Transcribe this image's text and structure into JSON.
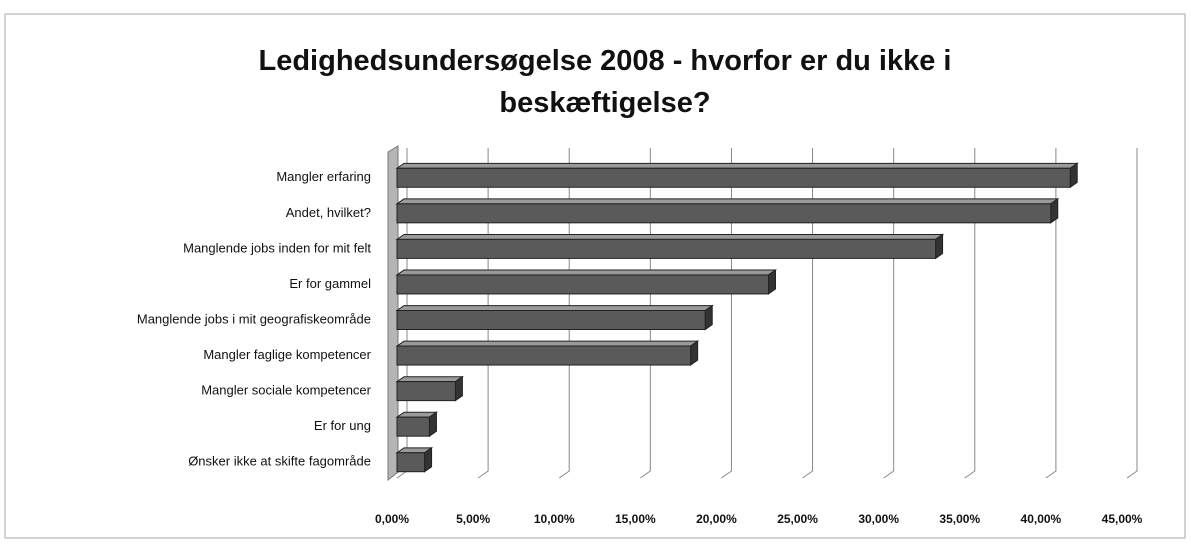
{
  "chart_data": {
    "type": "bar",
    "orientation": "horizontal",
    "title": "Ledighedsundersøgelse 2008 - hvorfor er du ikke i beskæftigelse?",
    "categories": [
      "Mangler erfaring",
      "Andet, hvilket?",
      "Manglende jobs inden for mit felt",
      "Er for gammel",
      "Manglende jobs i mit geografiskeområde",
      "Mangler faglige kompetencer",
      "Mangler sociale kompetencer",
      "Er for ung",
      "Ønsker ikke at skifte fagområde"
    ],
    "values": [
      41.5,
      40.3,
      33.2,
      22.9,
      19.0,
      18.1,
      3.6,
      2.0,
      1.7
    ],
    "color": "#5a5a5a",
    "xlim": [
      0,
      45
    ],
    "xticks": [
      {
        "value": 0,
        "label": "0,00%"
      },
      {
        "value": 5,
        "label": "5,00%"
      },
      {
        "value": 10,
        "label": "10,00%"
      },
      {
        "value": 15,
        "label": "15,00%"
      },
      {
        "value": 20,
        "label": "20,00%"
      },
      {
        "value": 25,
        "label": "25,00%"
      },
      {
        "value": 30,
        "label": "30,00%"
      },
      {
        "value": 35,
        "label": "35,00%"
      },
      {
        "value": 40,
        "label": "40,00%"
      },
      {
        "value": 45,
        "label": "45,00%"
      }
    ],
    "grid": true
  }
}
